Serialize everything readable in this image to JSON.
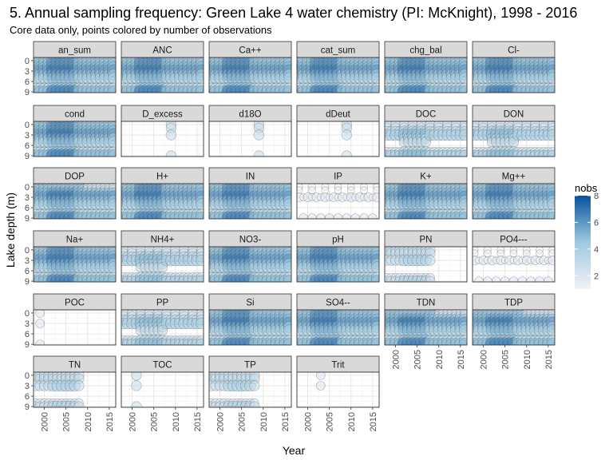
{
  "chart_data": {
    "type": "scatter",
    "title": "5. Annual sampling frequency: Green Lake 4 water chemistry (PI: McKnight), 1998 - 2016",
    "subtitle": "Core data only, points colored by number of observations",
    "xlabel": "Year",
    "ylabel": "Lake depth (m)",
    "xlim": [
      1997.5,
      2016.5
    ],
    "ylim": [
      9.2,
      -0.9
    ],
    "x_ticks": [
      2000,
      2005,
      2010,
      2015
    ],
    "y_ticks": [
      0,
      3,
      6,
      9
    ],
    "y_reversed": true,
    "facet_grid": "6 columns, wrap",
    "legend": {
      "title": "nobs",
      "breaks": [
        2,
        4,
        6,
        8
      ],
      "range": [
        1,
        8
      ],
      "low_color": "#f3f1f7",
      "high_color": "#08519c",
      "position": "right"
    },
    "panels": [
      {
        "name": "an_sum",
        "pattern": "full"
      },
      {
        "name": "ANC",
        "pattern": "full"
      },
      {
        "name": "Ca++",
        "pattern": "full"
      },
      {
        "name": "cat_sum",
        "pattern": "full"
      },
      {
        "name": "chg_bal",
        "pattern": "full"
      },
      {
        "name": "Cl-",
        "pattern": "full"
      },
      {
        "name": "cond",
        "pattern": "full"
      },
      {
        "name": "D_excess",
        "pattern": "isotope"
      },
      {
        "name": "d18O",
        "pattern": "isotope"
      },
      {
        "name": "dDeut",
        "pattern": "isotope"
      },
      {
        "name": "DOC",
        "pattern": "medium"
      },
      {
        "name": "DON",
        "pattern": "medium"
      },
      {
        "name": "DOP",
        "pattern": "full_light_top"
      },
      {
        "name": "H+",
        "pattern": "full"
      },
      {
        "name": "IN",
        "pattern": "full"
      },
      {
        "name": "IP",
        "pattern": "sparse"
      },
      {
        "name": "K+",
        "pattern": "full"
      },
      {
        "name": "Mg++",
        "pattern": "full"
      },
      {
        "name": "Na+",
        "pattern": "full"
      },
      {
        "name": "NH4+",
        "pattern": "medium"
      },
      {
        "name": "NO3-",
        "pattern": "full"
      },
      {
        "name": "pH",
        "pattern": "full"
      },
      {
        "name": "PN",
        "pattern": "early"
      },
      {
        "name": "PO4---",
        "pattern": "sparse"
      },
      {
        "name": "POC",
        "pattern": "poc"
      },
      {
        "name": "PP",
        "pattern": "medium"
      },
      {
        "name": "Si",
        "pattern": "full"
      },
      {
        "name": "SO4--",
        "pattern": "full"
      },
      {
        "name": "TDN",
        "pattern": "full_light_top"
      },
      {
        "name": "TDP",
        "pattern": "full_light_top"
      },
      {
        "name": "TN",
        "pattern": "early"
      },
      {
        "name": "TOC",
        "pattern": "toc"
      },
      {
        "name": "TP",
        "pattern": "early"
      },
      {
        "name": "Trit",
        "pattern": "trit"
      }
    ]
  }
}
